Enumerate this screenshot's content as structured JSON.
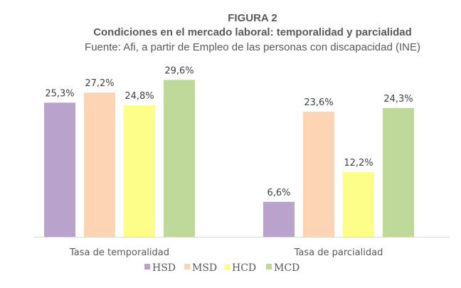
{
  "figure_label": "FIGURA 2",
  "chart_data": {
    "type": "bar",
    "title": "Condiciones en el mercado laboral: temporalidad y parcialidad",
    "subtitle": "Fuente: Afi, a partir de Empleo de las personas con discapacidad (INE)",
    "categories": [
      "Tasa de temporalidad",
      "Tasa de parcialidad"
    ],
    "series": [
      {
        "name": "HSD",
        "color": "#b9a3cc",
        "values": [
          25.3,
          6.6
        ],
        "labels": [
          "25,3%",
          "6,6%"
        ]
      },
      {
        "name": "MSD",
        "color": "#fdd5b4",
        "values": [
          27.2,
          23.6
        ],
        "labels": [
          "27,2%",
          "23,6%"
        ]
      },
      {
        "name": "HCD",
        "color": "#fdfe8a",
        "values": [
          24.8,
          12.2
        ],
        "labels": [
          "24,8%",
          "12,2%"
        ]
      },
      {
        "name": "MCD",
        "color": "#bfd99b",
        "values": [
          29.6,
          24.3
        ],
        "labels": [
          "29,6%",
          "24,3%"
        ]
      }
    ],
    "xlabel": "",
    "ylabel": "",
    "ylim": [
      0,
      35
    ],
    "grid": false,
    "legend": "bottom"
  }
}
